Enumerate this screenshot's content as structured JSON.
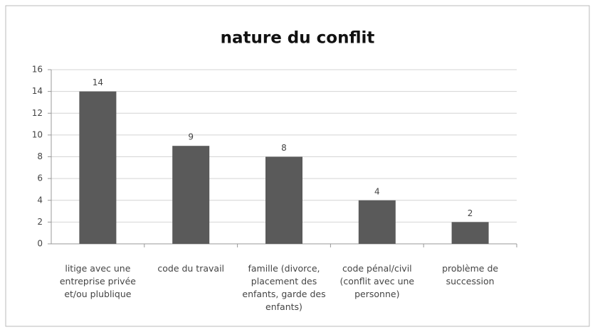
{
  "chart_data": {
    "type": "bar",
    "title": "nature du conflit",
    "categories": [
      "litige avec une entreprise privée et/ou plublique",
      "code du travail",
      "famille (divorce, placement des enfants, garde des enfants)",
      "code pénal/civil (conflit avec une personne)",
      "problème de succession"
    ],
    "values": [
      14,
      9,
      8,
      4,
      2
    ],
    "color": "#5a5a5a",
    "ylim": [
      0,
      16
    ],
    "yticks": [
      0,
      2,
      4,
      6,
      8,
      10,
      12,
      14,
      16
    ],
    "grid": true
  }
}
